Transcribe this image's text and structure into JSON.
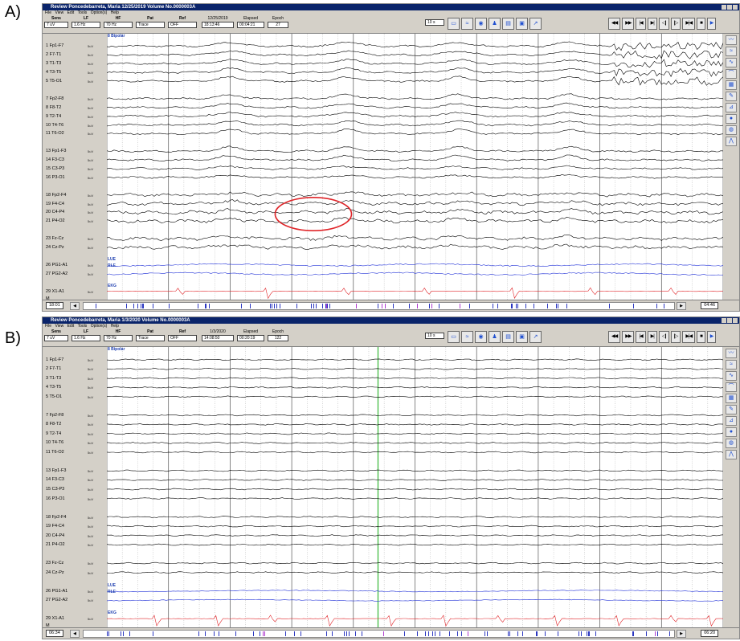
{
  "panels": [
    {
      "letter": "A)",
      "title": "Review  Poncedebarreta, Maria  12/25/2019  Volume No.0000003A",
      "menu": [
        "File",
        "View",
        "Edit",
        "Tools",
        "Option(s)",
        "Help"
      ],
      "controls": {
        "sens": {
          "label": "Sens",
          "value": "7 uV"
        },
        "lf": {
          "label": "LF",
          "value": "1.6 Hz"
        },
        "hf": {
          "label": "HF",
          "value": "70 Hz"
        },
        "pat": {
          "label": "Pat",
          "value": "Trace"
        },
        "ref": {
          "label": "Ref",
          "value": "OFF"
        },
        "date": "12/25/2019",
        "time": "18:13:46",
        "elapsed_label": "Elapsed",
        "elapsed": "00:04:21",
        "epoch_label": "Epoch",
        "epoch": "27",
        "speed": "10 s"
      },
      "status_left": "18:01",
      "status_right": "04:46",
      "montage_label": "8 Bipolar",
      "pg_label1": "LUE",
      "pg_label2": "RLE",
      "ekg_label": "EKG"
    },
    {
      "letter": "B)",
      "title": "Review  Poncedebarreta, Maria  1/3/2020  Volume No.0000003A",
      "menu": [
        "File",
        "View",
        "Edit",
        "Tools",
        "Option(s)",
        "Help"
      ],
      "controls": {
        "sens": {
          "label": "Sens",
          "value": "7 uV"
        },
        "lf": {
          "label": "LF",
          "value": "1.6 Hz"
        },
        "hf": {
          "label": "HF",
          "value": "70 Hz"
        },
        "pat": {
          "label": "Pat",
          "value": "Trace"
        },
        "ref": {
          "label": "Ref",
          "value": "OFF"
        },
        "date": "1/3/2020",
        "time": "14:08:50",
        "elapsed_label": "Elapsed",
        "elapsed": "00:20:19",
        "epoch_label": "Epoch",
        "epoch": "122",
        "speed": "10 s"
      },
      "status_left": "06:34",
      "status_right": "06:20",
      "montage_label": "8 Bipolar",
      "pg_label1": "LUE",
      "pg_label2": "RLE",
      "ekg_label": "EKG"
    }
  ],
  "channels": [
    "1 Fp1-F7",
    "2 F7-T1",
    "3 T1-T3",
    "4 T3-T5",
    "5 T5-O1",
    "7 Fp2-F8",
    "8 F8-T2",
    "9 T2-T4",
    "10 T4-T6",
    "11 T6-O2",
    "13 Fp1-F3",
    "14 F3-C3",
    "15 C3-P3",
    "16 P3-O1",
    "18 Fp2-F4",
    "19 F4-C4",
    "20 C4-P4",
    "21 P4-O2",
    "23 Fz-Cz",
    "24 Cz-Pz",
    "26 PG1-A1",
    "27 PG2-A2",
    "29 X1-A1"
  ],
  "channel_unit": "5uV",
  "channel_marker": "M",
  "icons": [
    "folder-icon",
    "montage-icon",
    "video-icon",
    "person-icon",
    "print-icon",
    "photo-icon",
    "export-icon"
  ],
  "nav_icons": [
    "rewind-icon",
    "fast-forward-icon",
    "step-back-icon",
    "step-forward-icon",
    "page-back-icon",
    "page-forward-icon",
    "end-icon",
    "stop-icon",
    "play-icon"
  ],
  "colors": {
    "eeg": "#000000",
    "pg": "#2333d8",
    "ekg": "#e0262a",
    "highlight_circle": "#e0262a",
    "title_bar": "#0a246a",
    "event_marker": "#36b836"
  }
}
